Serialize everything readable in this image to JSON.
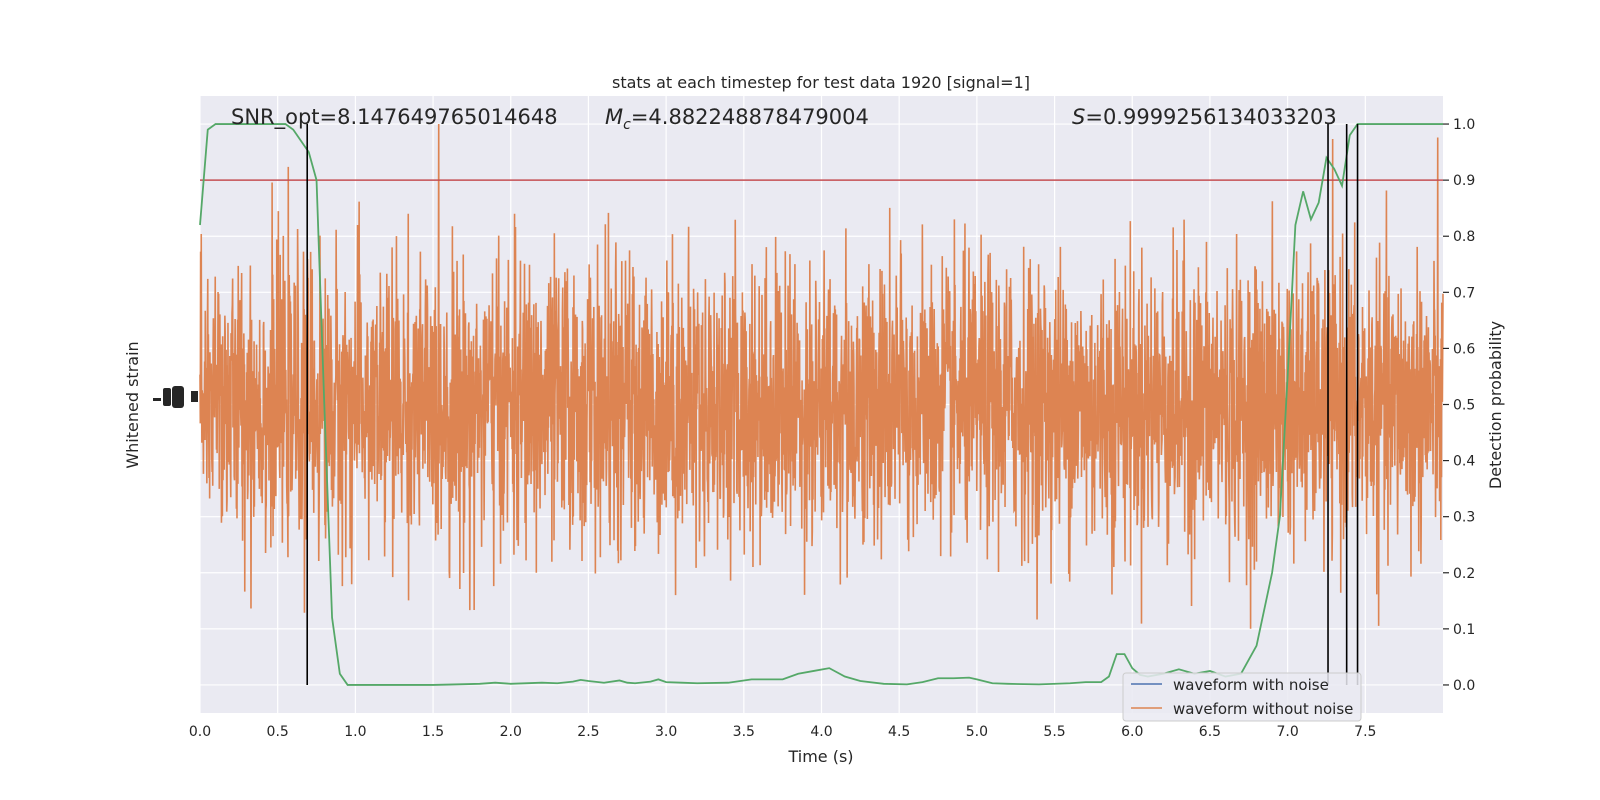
{
  "chart_data": {
    "type": "line",
    "title": "stats at each timestep for test data 1920 [signal=1]",
    "xlabel": "Time (s)",
    "ylabel_left": "Whitened strain",
    "ylabel_right": "Detection probability",
    "annotations": {
      "snr": "SNR_opt=8.147649765014648",
      "mc": "=4.882248878479004",
      "mc_symbol": "M",
      "mc_sub": "c",
      "s": "=0.9999256134033203",
      "s_symbol": "S"
    },
    "xlim": [
      0,
      8.0
    ],
    "ylim_right": [
      -0.05,
      1.05
    ],
    "x_ticks": [
      "0.0",
      "0.5",
      "1.0",
      "1.5",
      "2.0",
      "2.5",
      "3.0",
      "3.5",
      "4.0",
      "4.5",
      "5.0",
      "5.5",
      "6.0",
      "6.5",
      "7.0",
      "7.5"
    ],
    "x_tick_values": [
      0,
      0.5,
      1,
      1.5,
      2,
      2.5,
      3,
      3.5,
      4,
      4.5,
      5,
      5.5,
      6,
      6.5,
      7,
      7.5
    ],
    "y_right_ticks": [
      "0.0",
      "0.1",
      "0.2",
      "0.3",
      "0.4",
      "0.5",
      "0.6",
      "0.7",
      "0.8",
      "0.9",
      "1.0"
    ],
    "y_right_tick_values": [
      0,
      0.1,
      0.2,
      0.3,
      0.4,
      0.5,
      0.6,
      0.7,
      0.8,
      0.9,
      1.0
    ],
    "threshold": 0.9,
    "vertical_lines": [
      0.69,
      7.26,
      7.38,
      7.45
    ],
    "legend_placement": "lower-right",
    "series": [
      {
        "name": "waveform with noise",
        "color": "#4c72b0",
        "axis": "left",
        "note": "hidden behind orange trace"
      },
      {
        "name": "waveform without noise",
        "color": "#dd8452",
        "axis": "left",
        "envelope_right_units": {
          "center": 0.5,
          "typical_amplitude": 0.21,
          "max_high": 1.0,
          "min_low": 0.07
        }
      },
      {
        "name": "detection probability",
        "color": "#55a868",
        "axis": "right",
        "x": [
          0.0,
          0.05,
          0.1,
          0.2,
          0.3,
          0.4,
          0.5,
          0.55,
          0.6,
          0.65,
          0.7,
          0.75,
          0.8,
          0.85,
          0.9,
          0.95,
          1.0,
          1.1,
          1.2,
          1.5,
          1.8,
          1.9,
          2.0,
          2.2,
          2.3,
          2.4,
          2.45,
          2.5,
          2.6,
          2.7,
          2.75,
          2.8,
          2.9,
          2.95,
          3.0,
          3.1,
          3.2,
          3.4,
          3.55,
          3.65,
          3.75,
          3.85,
          3.95,
          4.05,
          4.15,
          4.25,
          4.4,
          4.55,
          4.65,
          4.75,
          4.85,
          4.95,
          5.0,
          5.1,
          5.2,
          5.4,
          5.6,
          5.7,
          5.8,
          5.85,
          5.9,
          5.95,
          6.0,
          6.05,
          6.1,
          6.2,
          6.3,
          6.4,
          6.5,
          6.6,
          6.7,
          6.8,
          6.9,
          6.95,
          7.0,
          7.05,
          7.1,
          7.15,
          7.2,
          7.25,
          7.3,
          7.35,
          7.4,
          7.45,
          7.5,
          7.55,
          7.6,
          7.7,
          8.0
        ],
        "y": [
          0.82,
          0.99,
          1.0,
          1.0,
          1.0,
          1.0,
          1.0,
          1.0,
          0.99,
          0.97,
          0.95,
          0.9,
          0.5,
          0.12,
          0.02,
          0.0,
          0.0,
          0.0,
          0.0,
          0.0,
          0.002,
          0.004,
          0.002,
          0.004,
          0.003,
          0.006,
          0.009,
          0.007,
          0.004,
          0.008,
          0.004,
          0.003,
          0.006,
          0.01,
          0.005,
          0.004,
          0.003,
          0.004,
          0.01,
          0.01,
          0.01,
          0.02,
          0.025,
          0.03,
          0.015,
          0.007,
          0.002,
          0.001,
          0.005,
          0.012,
          0.012,
          0.013,
          0.01,
          0.003,
          0.002,
          0.001,
          0.003,
          0.005,
          0.005,
          0.015,
          0.055,
          0.055,
          0.03,
          0.018,
          0.015,
          0.02,
          0.028,
          0.02,
          0.025,
          0.015,
          0.02,
          0.07,
          0.2,
          0.3,
          0.55,
          0.82,
          0.88,
          0.83,
          0.86,
          0.94,
          0.92,
          0.89,
          0.98,
          1.0,
          1.0,
          1.0,
          1.0,
          1.0,
          1.0
        ]
      }
    ]
  }
}
